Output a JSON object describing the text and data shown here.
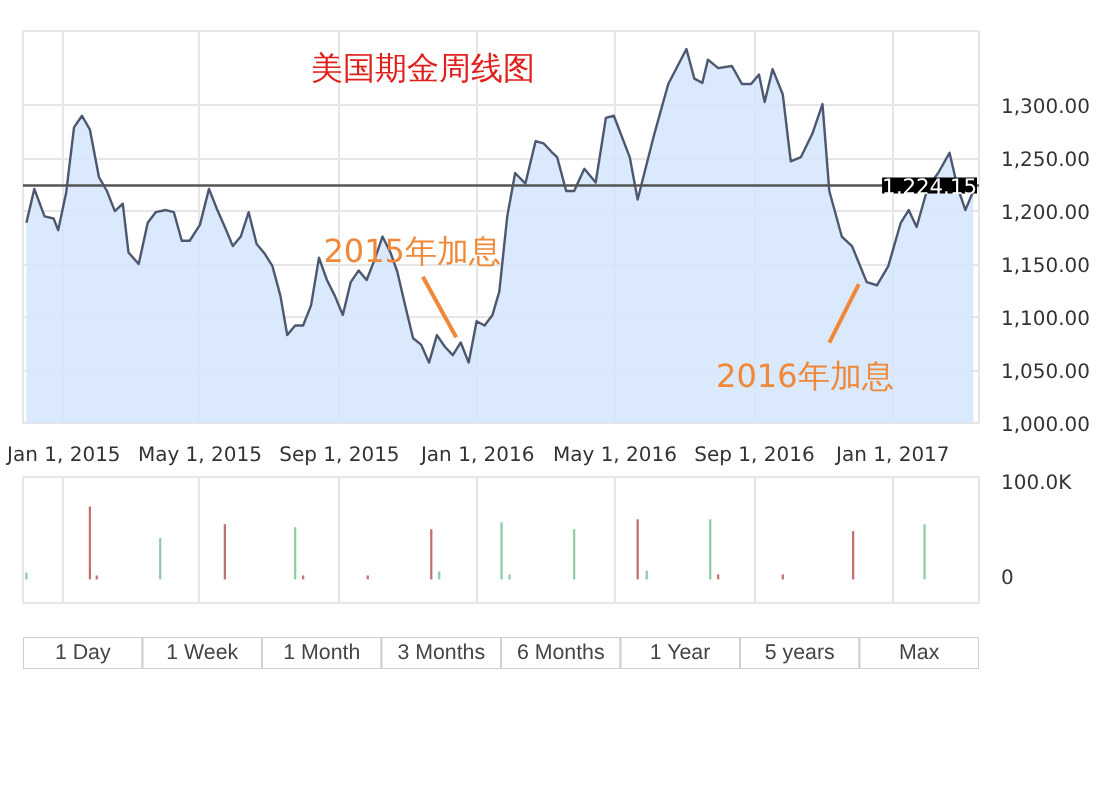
{
  "chart_data": [
    {
      "type": "area",
      "title": "美国期金周线图",
      "x": [
        "2014-11-29",
        "2014-12-06",
        "2014-12-15",
        "2014-12-23",
        "2014-12-27",
        "2015-01-03",
        "2015-01-10",
        "2015-01-17",
        "2015-01-24",
        "2015-02-01",
        "2015-02-08",
        "2015-02-15",
        "2015-02-22",
        "2015-02-27",
        "2015-03-08",
        "2015-03-16",
        "2015-03-23",
        "2015-04-01",
        "2015-04-08",
        "2015-04-15",
        "2015-04-22",
        "2015-05-01",
        "2015-05-09",
        "2015-05-16",
        "2015-05-23",
        "2015-05-30",
        "2015-06-06",
        "2015-06-13",
        "2015-06-20",
        "2015-06-27",
        "2015-07-04",
        "2015-07-11",
        "2015-07-17",
        "2015-07-24",
        "2015-07-31",
        "2015-08-07",
        "2015-08-14",
        "2015-08-21",
        "2015-08-28",
        "2015-09-04",
        "2015-09-11",
        "2015-09-18",
        "2015-09-25",
        "2015-10-02",
        "2015-10-09",
        "2015-10-16",
        "2015-10-22",
        "2015-10-29",
        "2015-11-05",
        "2015-11-12",
        "2015-11-19",
        "2015-11-26",
        "2015-12-03",
        "2015-12-10",
        "2015-12-17",
        "2015-12-24",
        "2015-12-31",
        "2016-01-07",
        "2016-01-14",
        "2016-01-20",
        "2016-01-27",
        "2016-02-03",
        "2016-02-12",
        "2016-02-21",
        "2016-02-28",
        "2016-03-06",
        "2016-03-11",
        "2016-03-19",
        "2016-03-26",
        "2016-04-04",
        "2016-04-14",
        "2016-04-23",
        "2016-04-30",
        "2016-05-14",
        "2016-05-21",
        "2016-06-04",
        "2016-06-17",
        "2016-07-03",
        "2016-07-10",
        "2016-07-17",
        "2016-07-22",
        "2016-07-31",
        "2016-08-12",
        "2016-08-21",
        "2016-08-29",
        "2016-09-05",
        "2016-09-10",
        "2016-09-17",
        "2016-09-26",
        "2016-10-03",
        "2016-10-12",
        "2016-10-22",
        "2016-10-31",
        "2016-11-06",
        "2016-11-17",
        "2016-11-26",
        "2016-12-09",
        "2016-12-18",
        "2016-12-28",
        "2017-01-08",
        "2017-01-15",
        "2017-01-22",
        "2017-02-01",
        "2017-02-10",
        "2017-02-20",
        "2017-02-27",
        "2017-03-06",
        "2017-03-13"
      ],
      "series": [
        {
          "color": "#d3e5fa",
          "values": [
            1189,
            1221,
            1195,
            1193,
            1182,
            1217,
            1279,
            1290,
            1277,
            1232,
            1219,
            1200,
            1207,
            1161,
            1150,
            1189,
            1199,
            1201,
            1199,
            1172,
            1172,
            1187,
            1221,
            1202,
            1185,
            1167,
            1176,
            1199,
            1169,
            1160,
            1148,
            1120,
            1083,
            1092,
            1092,
            1111,
            1156,
            1135,
            1120,
            1102,
            1133,
            1144,
            1135,
            1154,
            1176,
            1161,
            1143,
            1111,
            1080,
            1074,
            1057,
            1083,
            1072,
            1064,
            1076,
            1057,
            1096,
            1092,
            1102,
            1124,
            1195,
            1236,
            1226,
            1266,
            1264,
            1256,
            1251,
            1219,
            1219,
            1240,
            1227,
            1288,
            1290,
            1251,
            1211,
            1270,
            1320,
            1353,
            1325,
            1321,
            1343,
            1335,
            1337,
            1320,
            1320,
            1329,
            1303,
            1334,
            1310,
            1247,
            1251,
            1273,
            1301,
            1219,
            1176,
            1167,
            1133,
            1130,
            1148,
            1189,
            1201,
            1185,
            1223,
            1236,
            1255,
            1223,
            1201,
            1219
          ]
        }
      ],
      "xlim": [
        "2014-11-26",
        "2017-03-18"
      ],
      "xticks": [
        {
          "value": "2015-01-01",
          "label": "Jan 1, 2015"
        },
        {
          "value": "2015-05-01",
          "label": "May 1, 2015"
        },
        {
          "value": "2015-09-01",
          "label": "Sep 1, 2015"
        },
        {
          "value": "2016-01-01",
          "label": "Jan 1, 2016"
        },
        {
          "value": "2016-05-01",
          "label": "May 1, 2016"
        },
        {
          "value": "2016-09-01",
          "label": "Sep 1, 2016"
        },
        {
          "value": "2017-01-01",
          "label": "Jan 1, 2017"
        }
      ],
      "ylim": [
        1000,
        1370
      ],
      "yticks": [
        {
          "value": 1000,
          "label": "1,000.00"
        },
        {
          "value": 1050,
          "label": "1,050.00"
        },
        {
          "value": 1100,
          "label": "1,100.00"
        },
        {
          "value": 1150,
          "label": "1,150.00"
        },
        {
          "value": 1200,
          "label": "1,200.00"
        },
        {
          "value": 1250,
          "label": "1,250.00"
        },
        {
          "value": 1300,
          "label": "1,300.00"
        }
      ],
      "ref_lines": [
        {
          "axis": "y",
          "value": 1224.15,
          "label": "1,224.15",
          "color": "#555555"
        }
      ],
      "annotations": [
        {
          "text": "2015年加息",
          "x": "2015-12-13",
          "y": 1081
        },
        {
          "text": "2016年加息",
          "x": "2016-12-02",
          "y": 1131
        }
      ],
      "grid": true
    },
    {
      "type": "bar",
      "x": [
        "2014-11-29",
        "2015-01-24",
        "2015-01-30",
        "2015-03-27",
        "2015-05-23",
        "2015-07-24",
        "2015-07-31",
        "2015-09-26",
        "2015-11-21",
        "2015-11-28",
        "2016-01-22",
        "2016-01-29",
        "2016-03-26",
        "2016-05-21",
        "2016-05-29",
        "2016-07-24",
        "2016-07-31",
        "2016-09-26",
        "2016-11-27",
        "2017-01-29"
      ],
      "values": [
        7000,
        74000,
        4000,
        42000,
        56000,
        53000,
        4000,
        4000,
        51000,
        8000,
        58000,
        5000,
        51000,
        61000,
        9000,
        61000,
        5000,
        5000,
        49000,
        56000
      ],
      "colors": [
        "#8fcca6",
        "#c4706b",
        "#c4706b",
        "#8fcca6",
        "#c4706b",
        "#8fcca6",
        "#c4706b",
        "#c4706b",
        "#c4706b",
        "#8fcca6",
        "#8fcca6",
        "#8fcca6",
        "#8fcca6",
        "#c4706b",
        "#8fcca6",
        "#8fcca6",
        "#c4706b",
        "#c4706b",
        "#c4706b",
        "#8fcca6"
      ],
      "xlim": [
        "2014-11-26",
        "2017-03-18"
      ],
      "xticks": [
        {
          "value": "2015-01-01",
          "label": null
        },
        {
          "value": "2015-05-01",
          "label": null
        },
        {
          "value": "2015-09-01",
          "label": null
        },
        {
          "value": "2016-01-01",
          "label": null
        },
        {
          "value": "2016-05-01",
          "label": null
        },
        {
          "value": "2016-09-01",
          "label": null
        },
        {
          "value": "2017-01-01",
          "label": null
        }
      ],
      "ylim": [
        -24000,
        104000
      ],
      "yticks": [
        {
          "value": 0,
          "label": "0"
        },
        {
          "value": 100000,
          "label": "100.0K"
        }
      ],
      "tick_labels": "y",
      "grid": "x",
      "annotations": [
        "1 Day",
        "1 Week",
        "1 Month",
        "3 Months",
        "6 Months",
        "1 Year",
        "5 years",
        "Max"
      ]
    }
  ]
}
